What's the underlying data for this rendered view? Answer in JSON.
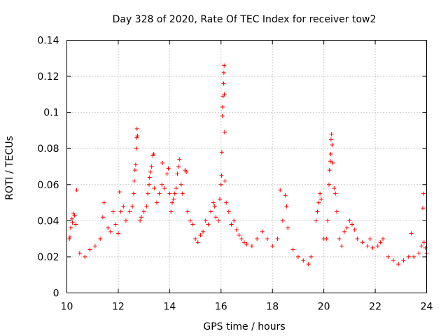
{
  "chart_data": {
    "type": "scatter",
    "title": "Day 328 of 2020, Rate Of TEC Index for receiver tow2",
    "xlabel": "GPS time / hours",
    "ylabel": "ROTI / TECUs",
    "xlim": [
      10,
      24
    ],
    "ylim": [
      0,
      0.14
    ],
    "xticks": [
      10,
      12,
      14,
      16,
      18,
      20,
      22,
      24
    ],
    "xtick_labels": [
      "10",
      "12",
      "14",
      "16",
      "18",
      "20",
      "22",
      "24"
    ],
    "yticks": [
      0,
      0.02,
      0.04,
      0.06,
      0.08,
      0.1,
      0.12,
      0.14
    ],
    "ytick_labels": [
      "0",
      "0.02",
      "0.04",
      "0.06",
      "0.08",
      "0.1",
      "0.12",
      "0.14"
    ],
    "grid": true,
    "marker": "+",
    "color": "#ff0000",
    "series": [
      {
        "name": "ROTI",
        "points": [
          [
            10.1,
            0.03
          ],
          [
            10.15,
            0.036
          ],
          [
            10.2,
            0.041
          ],
          [
            10.25,
            0.044
          ],
          [
            10.3,
            0.043
          ],
          [
            10.35,
            0.038
          ],
          [
            10.38,
            0.057
          ],
          [
            10.12,
            0.031
          ],
          [
            10.22,
            0.039
          ],
          [
            10.5,
            0.022
          ],
          [
            10.7,
            0.02
          ],
          [
            10.9,
            0.024
          ],
          [
            11.1,
            0.026
          ],
          [
            11.3,
            0.03
          ],
          [
            11.4,
            0.042
          ],
          [
            11.45,
            0.05
          ],
          [
            11.6,
            0.036
          ],
          [
            11.7,
            0.034
          ],
          [
            11.8,
            0.045
          ],
          [
            11.9,
            0.038
          ],
          [
            12.0,
            0.033
          ],
          [
            12.05,
            0.056
          ],
          [
            12.1,
            0.045
          ],
          [
            12.2,
            0.048
          ],
          [
            12.3,
            0.04
          ],
          [
            12.45,
            0.045
          ],
          [
            12.55,
            0.048
          ],
          [
            12.6,
            0.055
          ],
          [
            12.62,
            0.062
          ],
          [
            12.65,
            0.068
          ],
          [
            12.68,
            0.071
          ],
          [
            12.7,
            0.08
          ],
          [
            12.72,
            0.086
          ],
          [
            12.73,
            0.091
          ],
          [
            12.75,
            0.087
          ],
          [
            12.85,
            0.04
          ],
          [
            12.9,
            0.042
          ],
          [
            13.0,
            0.045
          ],
          [
            13.1,
            0.048
          ],
          [
            13.15,
            0.055
          ],
          [
            13.2,
            0.06
          ],
          [
            13.22,
            0.064
          ],
          [
            13.25,
            0.067
          ],
          [
            13.3,
            0.07
          ],
          [
            13.35,
            0.076
          ],
          [
            13.38,
            0.077
          ],
          [
            13.4,
            0.058
          ],
          [
            13.5,
            0.05
          ],
          [
            13.6,
            0.055
          ],
          [
            13.7,
            0.06
          ],
          [
            13.72,
            0.072
          ],
          [
            13.8,
            0.058
          ],
          [
            13.9,
            0.066
          ],
          [
            13.95,
            0.069
          ],
          [
            14.0,
            0.055
          ],
          [
            14.05,
            0.045
          ],
          [
            14.1,
            0.05
          ],
          [
            14.15,
            0.052
          ],
          [
            14.2,
            0.055
          ],
          [
            14.25,
            0.058
          ],
          [
            14.3,
            0.066
          ],
          [
            14.35,
            0.07
          ],
          [
            14.38,
            0.074
          ],
          [
            14.45,
            0.06
          ],
          [
            14.5,
            0.055
          ],
          [
            14.6,
            0.068
          ],
          [
            14.65,
            0.067
          ],
          [
            14.7,
            0.045
          ],
          [
            14.8,
            0.04
          ],
          [
            14.9,
            0.038
          ],
          [
            15.0,
            0.03
          ],
          [
            15.1,
            0.028
          ],
          [
            15.2,
            0.032
          ],
          [
            15.3,
            0.034
          ],
          [
            15.4,
            0.04
          ],
          [
            15.5,
            0.038
          ],
          [
            15.6,
            0.045
          ],
          [
            15.7,
            0.05
          ],
          [
            15.75,
            0.048
          ],
          [
            15.8,
            0.042
          ],
          [
            15.9,
            0.04
          ],
          [
            15.95,
            0.052
          ],
          [
            16.0,
            0.06
          ],
          [
            16.02,
            0.065
          ],
          [
            16.03,
            0.078
          ],
          [
            16.05,
            0.098
          ],
          [
            16.06,
            0.103
          ],
          [
            16.08,
            0.109
          ],
          [
            16.1,
            0.116
          ],
          [
            16.11,
            0.122
          ],
          [
            16.12,
            0.126
          ],
          [
            16.13,
            0.11
          ],
          [
            16.14,
            0.089
          ],
          [
            16.15,
            0.062
          ],
          [
            16.2,
            0.05
          ],
          [
            16.3,
            0.045
          ],
          [
            16.4,
            0.038
          ],
          [
            16.5,
            0.04
          ],
          [
            16.6,
            0.035
          ],
          [
            16.7,
            0.032
          ],
          [
            16.8,
            0.03
          ],
          [
            16.9,
            0.028
          ],
          [
            17.0,
            0.027
          ],
          [
            17.2,
            0.026
          ],
          [
            17.4,
            0.03
          ],
          [
            17.6,
            0.034
          ],
          [
            17.8,
            0.03
          ],
          [
            18.0,
            0.026
          ],
          [
            18.2,
            0.03
          ],
          [
            18.3,
            0.057
          ],
          [
            18.4,
            0.04
          ],
          [
            18.5,
            0.054
          ],
          [
            18.55,
            0.048
          ],
          [
            18.6,
            0.036
          ],
          [
            18.8,
            0.024
          ],
          [
            19.0,
            0.02
          ],
          [
            19.2,
            0.018
          ],
          [
            19.4,
            0.016
          ],
          [
            19.5,
            0.02
          ],
          [
            19.7,
            0.04
          ],
          [
            19.75,
            0.045
          ],
          [
            19.8,
            0.05
          ],
          [
            19.85,
            0.055
          ],
          [
            19.9,
            0.052
          ],
          [
            20.0,
            0.03
          ],
          [
            20.1,
            0.03
          ],
          [
            20.15,
            0.04
          ],
          [
            20.2,
            0.06
          ],
          [
            20.22,
            0.068
          ],
          [
            20.25,
            0.073
          ],
          [
            20.27,
            0.077
          ],
          [
            20.28,
            0.085
          ],
          [
            20.3,
            0.088
          ],
          [
            20.32,
            0.082
          ],
          [
            20.35,
            0.072
          ],
          [
            20.4,
            0.058
          ],
          [
            20.45,
            0.055
          ],
          [
            20.5,
            0.045
          ],
          [
            20.6,
            0.03
          ],
          [
            20.7,
            0.026
          ],
          [
            20.8,
            0.034
          ],
          [
            20.9,
            0.036
          ],
          [
            21.0,
            0.04
          ],
          [
            21.1,
            0.038
          ],
          [
            21.2,
            0.035
          ],
          [
            21.3,
            0.03
          ],
          [
            21.5,
            0.028
          ],
          [
            21.7,
            0.026
          ],
          [
            21.8,
            0.03
          ],
          [
            21.9,
            0.025
          ],
          [
            22.1,
            0.026
          ],
          [
            22.2,
            0.028
          ],
          [
            22.3,
            0.03
          ],
          [
            22.5,
            0.02
          ],
          [
            22.7,
            0.018
          ],
          [
            22.9,
            0.016
          ],
          [
            23.1,
            0.018
          ],
          [
            23.3,
            0.02
          ],
          [
            23.4,
            0.033
          ],
          [
            23.5,
            0.02
          ],
          [
            23.7,
            0.022
          ],
          [
            23.8,
            0.026
          ],
          [
            23.85,
            0.047
          ],
          [
            23.88,
            0.055
          ],
          [
            23.9,
            0.028
          ],
          [
            23.95,
            0.025
          ],
          [
            24.0,
            0.022
          ]
        ]
      }
    ]
  }
}
